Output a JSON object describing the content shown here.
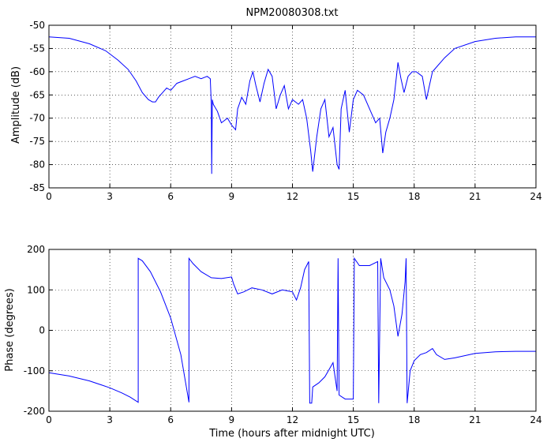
{
  "chart_data": [
    {
      "type": "line",
      "title": "NPM20080308.txt",
      "xlabel": "",
      "ylabel": "Amplitude (dB)",
      "xlim": [
        0,
        24
      ],
      "ylim": [
        -85,
        -50
      ],
      "xticks": [
        0,
        3,
        6,
        9,
        12,
        15,
        18,
        21,
        24
      ],
      "yticks": [
        -85,
        -80,
        -75,
        -70,
        -65,
        -60,
        -55,
        -50
      ],
      "grid": true,
      "line_color": "#0000ff",
      "series": [
        {
          "x": [
            0,
            1,
            2,
            2.8,
            3.4,
            3.9,
            4.3,
            4.6,
            4.9,
            5.1,
            5.25,
            5.4,
            5.6,
            5.8,
            6.0,
            6.3,
            6.6,
            6.9,
            7.2,
            7.5,
            7.8,
            7.95,
            8.0,
            8.02,
            8.05,
            8.1,
            8.3,
            8.5,
            8.8,
            9.0,
            9.2,
            9.3,
            9.5,
            9.7,
            9.9,
            10.05,
            10.2,
            10.4,
            10.6,
            10.8,
            11.0,
            11.2,
            11.4,
            11.6,
            11.8,
            12.0,
            12.3,
            12.5,
            12.7,
            12.9,
            13.0,
            13.2,
            13.4,
            13.6,
            13.8,
            14.0,
            14.2,
            14.3,
            14.4,
            14.6,
            14.8,
            15.0,
            15.2,
            15.5,
            15.8,
            16.1,
            16.3,
            16.45,
            16.6,
            16.8,
            17.0,
            17.2,
            17.35,
            17.5,
            17.7,
            17.9,
            18.1,
            18.4,
            18.6,
            18.75,
            18.9,
            19.1,
            19.5,
            20.0,
            21.0,
            22.0,
            23.0,
            24.0
          ],
          "y": [
            -52.5,
            -52.8,
            -54,
            -55.5,
            -57.5,
            -59.5,
            -62,
            -64.5,
            -66,
            -66.5,
            -66.5,
            -65.5,
            -64.5,
            -63.5,
            -64,
            -62.5,
            -62,
            -61.5,
            -61,
            -61.5,
            -61,
            -61.5,
            -67,
            -82,
            -66,
            -67,
            -68.5,
            -71,
            -70,
            -71.5,
            -72.5,
            -68,
            -65.5,
            -67,
            -62,
            -60,
            -63,
            -66.5,
            -62.5,
            -59.5,
            -61,
            -68,
            -65,
            -63,
            -68,
            -66,
            -67,
            -66,
            -70,
            -77,
            -81.5,
            -74,
            -68,
            -66,
            -74,
            -72,
            -80,
            -81,
            -68,
            -64,
            -73,
            -66,
            -64,
            -65,
            -68,
            -71,
            -70,
            -77.5,
            -73,
            -70,
            -66,
            -58,
            -61.5,
            -64.5,
            -61,
            -60,
            -60,
            -61,
            -66,
            -63,
            -60,
            -59,
            -57,
            -55,
            -53.5,
            -52.8,
            -52.5,
            -52.5
          ]
        }
      ]
    },
    {
      "type": "line",
      "title": "",
      "xlabel": "Time (hours after midnight UTC)",
      "ylabel": "Phase (degrees)",
      "xlim": [
        0,
        24
      ],
      "ylim": [
        -200,
        200
      ],
      "xticks": [
        0,
        3,
        6,
        9,
        12,
        15,
        18,
        21,
        24
      ],
      "yticks": [
        -200,
        -100,
        0,
        100,
        200
      ],
      "grid": true,
      "line_color": "#0000ff",
      "series": [
        {
          "x": [
            0,
            1,
            2,
            3,
            3.6,
            4.0,
            4.4,
            4.4,
            4.6,
            5.0,
            5.5,
            6.0,
            6.5,
            6.9,
            6.9,
            7.1,
            7.5,
            8.0,
            8.5,
            9.0,
            9.1,
            9.3,
            9.6,
            10.0,
            10.5,
            11.0,
            11.5,
            12.0,
            12.2,
            12.4,
            12.6,
            12.8,
            12.85,
            12.95,
            13.0,
            13.3,
            13.6,
            14.0,
            14.2,
            14.25,
            14.3,
            14.6,
            15.0,
            15.05,
            15.3,
            15.8,
            16.2,
            16.25,
            16.35,
            16.5,
            16.8,
            17.0,
            17.2,
            17.4,
            17.55,
            17.6,
            17.65,
            17.8,
            18.0,
            18.3,
            18.6,
            18.9,
            19.1,
            19.5,
            20.0,
            21.0,
            22.0,
            23.0,
            24.0
          ],
          "y": [
            -105,
            -113,
            -125,
            -142,
            -155,
            -165,
            -178,
            178,
            172,
            145,
            95,
            30,
            -60,
            -178,
            178,
            165,
            145,
            130,
            128,
            132,
            115,
            90,
            95,
            105,
            100,
            90,
            100,
            95,
            75,
            105,
            150,
            170,
            -180,
            -180,
            -140,
            -130,
            -115,
            -80,
            -150,
            178,
            -160,
            -170,
            -170,
            178,
            160,
            160,
            170,
            -180,
            178,
            130,
            100,
            60,
            -15,
            40,
            120,
            178,
            -180,
            -100,
            -75,
            -60,
            -55,
            -45,
            -60,
            -72,
            -68,
            -57,
            -53,
            -52,
            -52
          ]
        }
      ]
    }
  ]
}
